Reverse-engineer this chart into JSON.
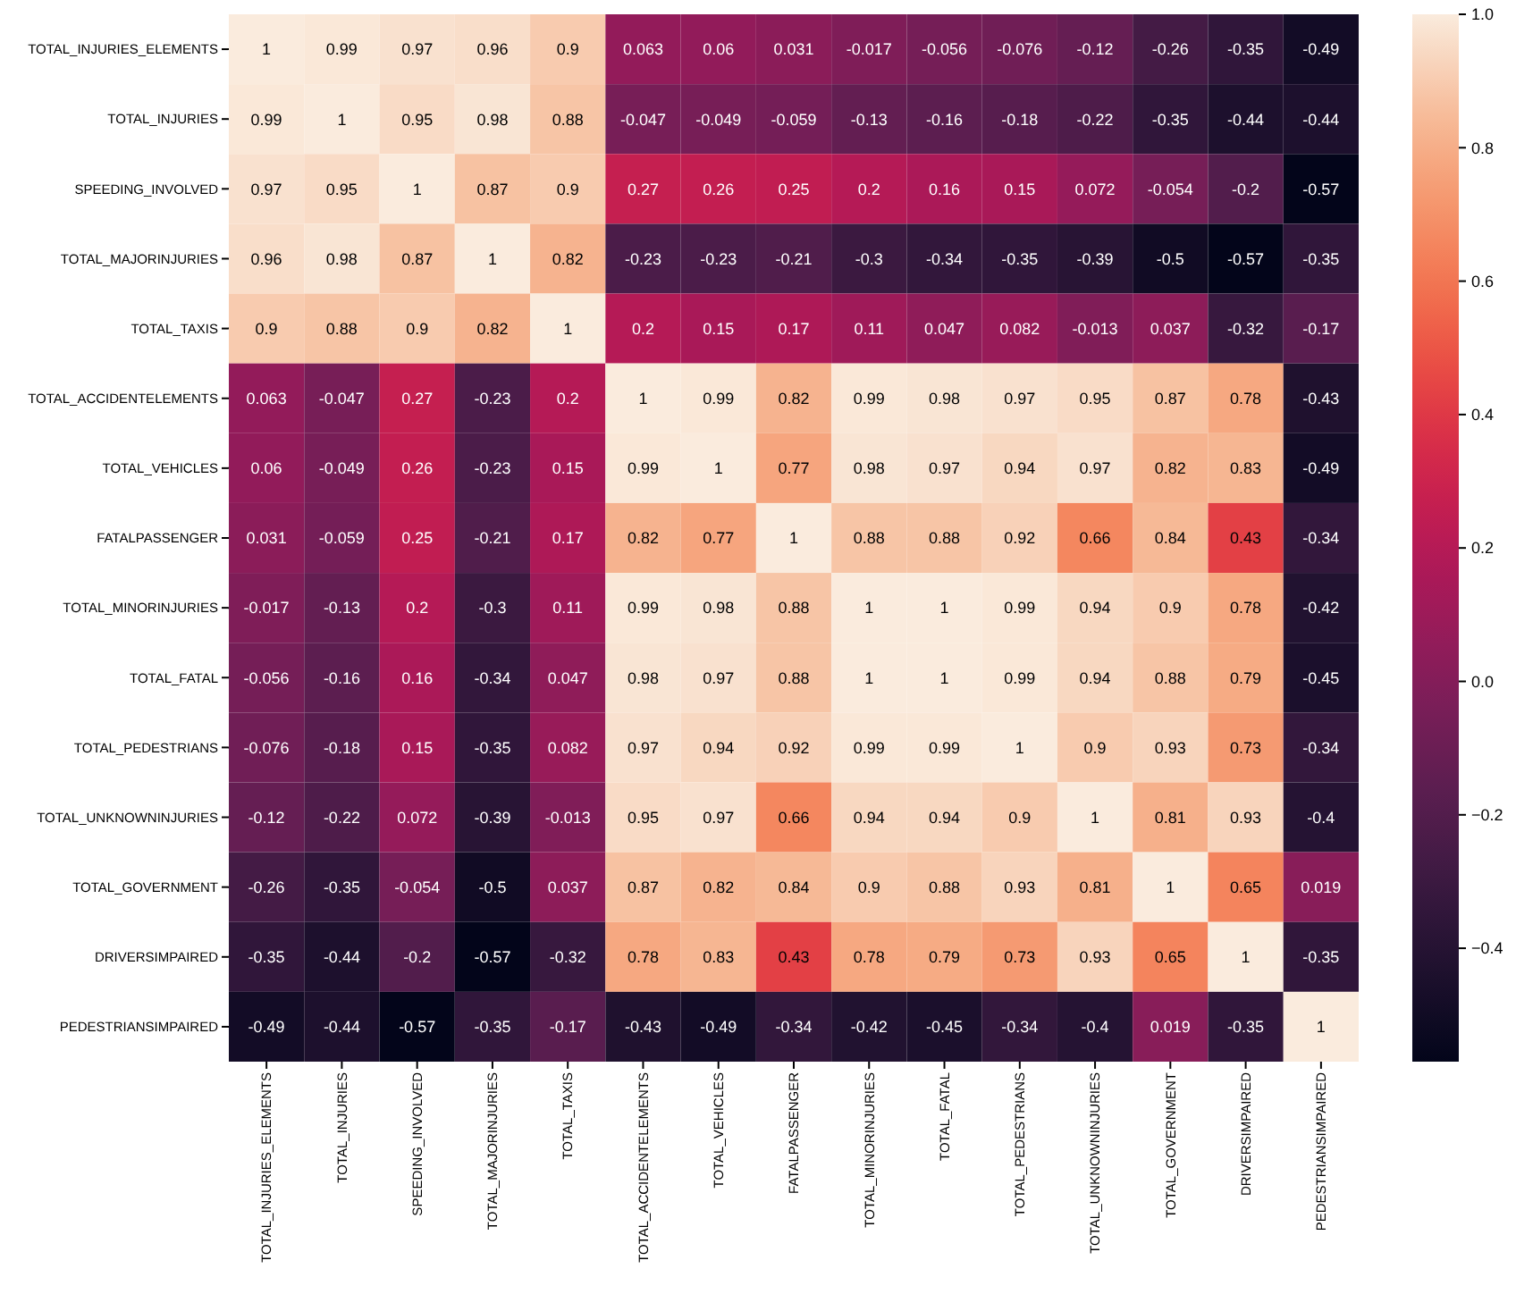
{
  "chart_data": {
    "type": "heatmap",
    "categories": [
      "TOTAL_INJURIES_ELEMENTS",
      "TOTAL_INJURIES",
      "SPEEDING_INVOLVED",
      "TOTAL_MAJORINJURIES",
      "TOTAL_TAXIS",
      "TOTAL_ACCIDENTELEMENTS",
      "TOTAL_VEHICLES",
      "FATALPASSENGER",
      "TOTAL_MINORINJURIES",
      "TOTAL_FATAL",
      "TOTAL_PEDESTRIANS",
      "TOTAL_UNKNOWNINJURIES",
      "TOTAL_GOVERNMENT",
      "DRIVERSIMPAIRED",
      "PEDESTRIANSIMPAIRED"
    ],
    "y_categories": [
      "TOTAL_INJURIES_ELEMENTS",
      "TOTAL_INJURIES",
      "SPEEDING_INVOLVED",
      "TOTAL_MAJORINJURIES",
      "TOTAL_TAXIS",
      "TOTAL_ACCIDENTELEMENTS",
      "TOTAL_VEHICLES",
      "FATALPASSENGER",
      "TOTAL_MINORINJURIES",
      "TOTAL_FATAL",
      "TOTAL_PEDESTRIANS",
      "TOTAL_UNKNOWNINJURIES",
      "TOTAL_GOVERNMENT",
      "DRIVERSIMPAIRED",
      "PEDESTRIANSIMPAIRED"
    ],
    "cells": [
      [
        1,
        0.99,
        0.97,
        0.96,
        0.9,
        0.063,
        0.06,
        0.031,
        -0.017,
        -0.056,
        -0.076,
        -0.12,
        -0.26,
        -0.35,
        -0.49
      ],
      [
        0.99,
        1,
        0.95,
        0.98,
        0.88,
        -0.047,
        -0.049,
        -0.059,
        -0.13,
        -0.16,
        -0.18,
        -0.22,
        -0.35,
        -0.44,
        -0.44
      ],
      [
        0.97,
        0.95,
        1,
        0.87,
        0.9,
        0.27,
        0.26,
        0.25,
        0.2,
        0.16,
        0.15,
        0.072,
        -0.054,
        -0.2,
        -0.57
      ],
      [
        0.96,
        0.98,
        0.87,
        1,
        0.82,
        -0.23,
        -0.23,
        -0.21,
        -0.3,
        -0.34,
        -0.35,
        -0.39,
        -0.5,
        -0.57,
        -0.35
      ],
      [
        0.9,
        0.88,
        0.9,
        0.82,
        1,
        0.2,
        0.15,
        0.17,
        0.11,
        0.047,
        0.082,
        -0.013,
        0.037,
        -0.32,
        -0.17
      ],
      [
        0.063,
        -0.047,
        0.27,
        -0.23,
        0.2,
        1,
        0.99,
        0.82,
        0.99,
        0.98,
        0.97,
        0.95,
        0.87,
        0.78,
        -0.43
      ],
      [
        0.06,
        -0.049,
        0.26,
        -0.23,
        0.15,
        0.99,
        1,
        0.77,
        0.98,
        0.97,
        0.94,
        0.97,
        0.82,
        0.83,
        -0.49
      ],
      [
        0.031,
        -0.059,
        0.25,
        -0.21,
        0.17,
        0.82,
        0.77,
        1,
        0.88,
        0.88,
        0.92,
        0.66,
        0.84,
        0.43,
        -0.34
      ],
      [
        -0.017,
        -0.13,
        0.2,
        -0.3,
        0.11,
        0.99,
        0.98,
        0.88,
        1,
        1,
        0.99,
        0.94,
        0.9,
        0.78,
        -0.42
      ],
      [
        -0.056,
        -0.16,
        0.16,
        -0.34,
        0.047,
        0.98,
        0.97,
        0.88,
        1,
        1,
        0.99,
        0.94,
        0.88,
        0.79,
        -0.45
      ],
      [
        -0.076,
        -0.18,
        0.15,
        -0.35,
        0.082,
        0.97,
        0.94,
        0.92,
        0.99,
        0.99,
        1,
        0.9,
        0.93,
        0.73,
        -0.34
      ],
      [
        -0.12,
        -0.22,
        0.072,
        -0.39,
        -0.013,
        0.95,
        0.97,
        0.66,
        0.94,
        0.94,
        0.9,
        1,
        0.81,
        0.93,
        -0.4
      ],
      [
        -0.26,
        -0.35,
        -0.054,
        -0.5,
        0.037,
        0.87,
        0.82,
        0.84,
        0.9,
        0.88,
        0.93,
        0.81,
        1,
        0.65,
        0.019
      ],
      [
        -0.35,
        -0.44,
        -0.2,
        -0.57,
        -0.32,
        0.78,
        0.83,
        0.43,
        0.78,
        0.79,
        0.73,
        0.93,
        0.65,
        1,
        -0.35
      ],
      [
        -0.49,
        -0.44,
        -0.57,
        -0.35,
        -0.17,
        -0.43,
        -0.49,
        -0.34,
        -0.42,
        -0.45,
        -0.34,
        -0.4,
        0.019,
        -0.35,
        1
      ]
    ],
    "data_labels": true,
    "clim": [
      -0.57,
      1
    ],
    "cticks": [
      {
        "value": -0.4,
        "label": "−0.4"
      },
      {
        "value": -0.2,
        "label": "−0.2"
      },
      {
        "value": 0,
        "label": "0.0"
      },
      {
        "value": 0.2,
        "label": "0.2"
      },
      {
        "value": 0.4,
        "label": "0.4"
      },
      {
        "value": 0.6,
        "label": "0.6"
      },
      {
        "value": 0.8,
        "label": "0.8"
      },
      {
        "value": 1,
        "label": "1.0"
      }
    ]
  }
}
